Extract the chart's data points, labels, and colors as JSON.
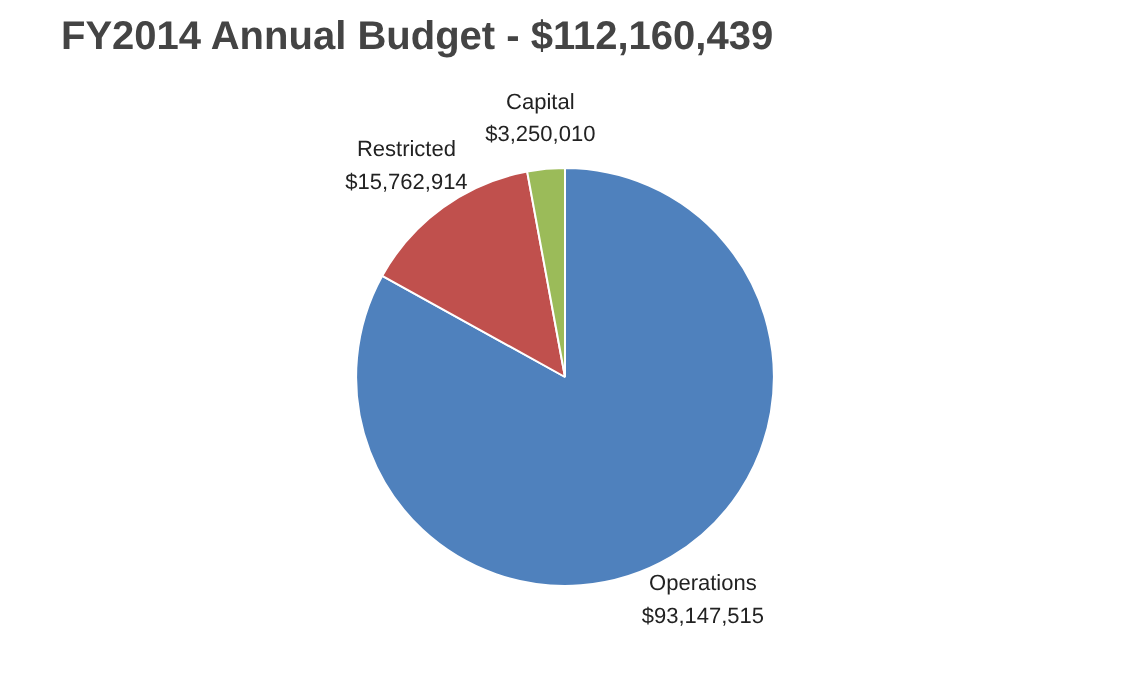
{
  "chart_data": {
    "type": "pie",
    "title": "FY2014 Annual Budget - $112,160,439",
    "categories": [
      "Operations",
      "Restricted",
      "Capital"
    ],
    "values": [
      93147515,
      15762914,
      3250010
    ],
    "value_labels": [
      "$93,147,515",
      "$15,762,914",
      "$3,250,010"
    ],
    "colors": [
      "#4f81bd",
      "#c0504d",
      "#9bbb59"
    ],
    "legend": false
  }
}
